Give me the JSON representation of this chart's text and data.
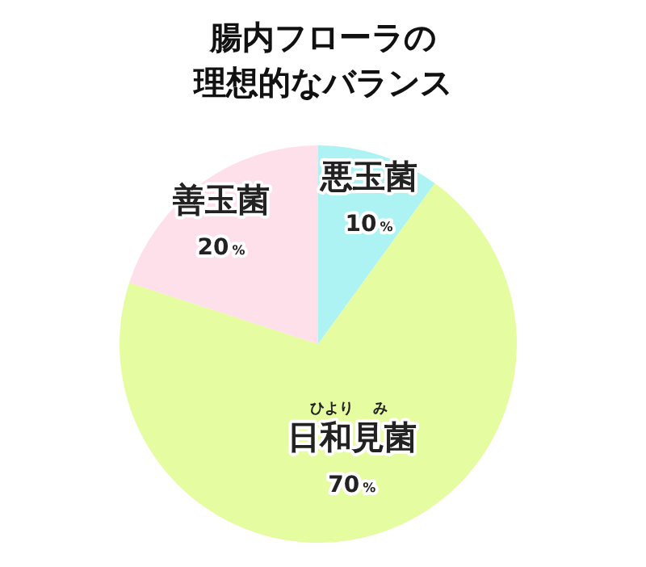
{
  "chart_data": {
    "type": "pie",
    "title": "腸内フローラの理想的なバランス",
    "categories": [
      "悪玉菌",
      "日和見菌",
      "善玉菌"
    ],
    "values": [
      10,
      70,
      20
    ],
    "colors": [
      "#aef3f3",
      "#e5fca0",
      "#fde0ea"
    ],
    "value_labels": [
      "10%",
      "70%",
      "20%"
    ],
    "annotations": [
      "ひより　 み"
    ]
  }
}
